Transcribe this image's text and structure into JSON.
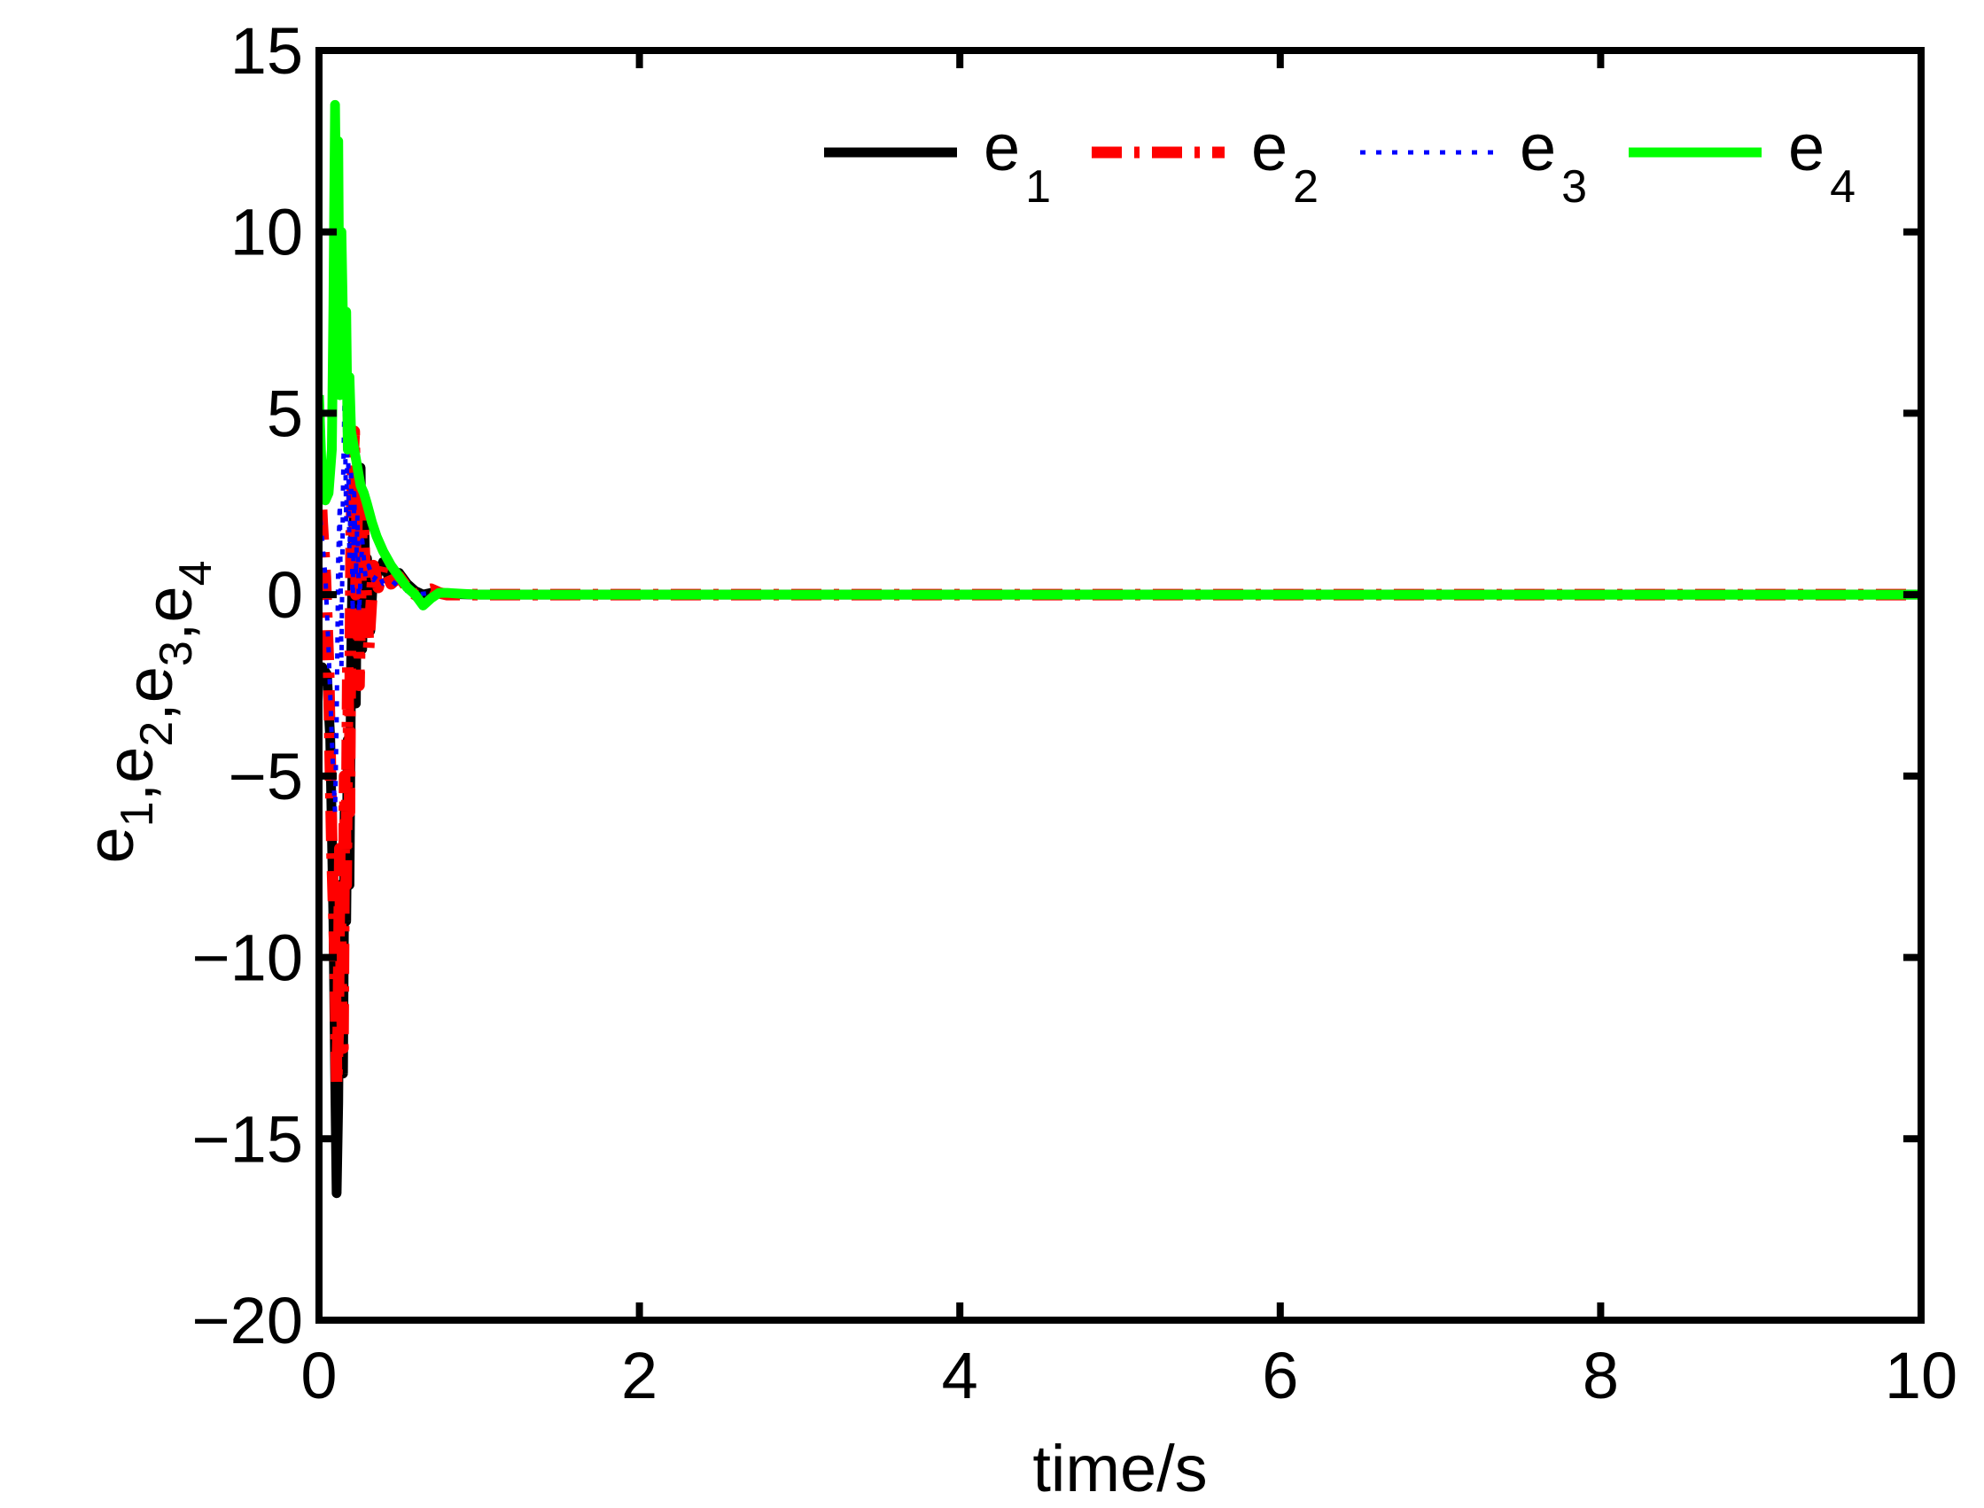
{
  "chart_data": {
    "type": "line",
    "title": "",
    "xlabel": "time/s",
    "ylabel": {
      "parts": [
        {
          "base": "e",
          "sub": "1"
        },
        {
          "base": ",e",
          "sub": "2"
        },
        {
          "base": ",e",
          "sub": "3"
        },
        {
          "base": ",e",
          "sub": "4"
        }
      ]
    },
    "xlim": [
      0,
      10
    ],
    "ylim": [
      -20,
      15
    ],
    "xticks": [
      0,
      2,
      4,
      6,
      8,
      10
    ],
    "yticks": [
      -20,
      -15,
      -10,
      -5,
      0,
      5,
      10,
      15
    ],
    "xtick_labels": [
      "0",
      "2",
      "4",
      "6",
      "8",
      "10"
    ],
    "ytick_labels": [
      "−20",
      "−15",
      "−10",
      "−5",
      "0",
      "5",
      "10",
      "15"
    ],
    "grid": false,
    "legend_position": "top-right",
    "series": [
      {
        "name": {
          "base": "e",
          "sub": "1"
        },
        "color": "#000000",
        "style": "solid",
        "x": [
          0,
          0.02,
          0.05,
          0.07,
          0.09,
          0.1,
          0.11,
          0.12,
          0.13,
          0.14,
          0.15,
          0.16,
          0.17,
          0.18,
          0.19,
          0.2,
          0.21,
          0.22,
          0.23,
          0.24,
          0.25,
          0.26,
          0.27,
          0.28,
          0.29,
          0.3,
          0.32,
          0.34,
          0.36,
          0.4,
          0.45,
          0.5,
          0.55,
          0.6,
          0.65,
          0.7,
          0.8,
          1.0,
          2.0,
          4.0,
          6.0,
          8.0,
          10.0
        ],
        "y": [
          -2.5,
          -2.0,
          -2.2,
          -4.0,
          -9.0,
          -13.0,
          -16.5,
          -14.0,
          -8.0,
          -11.0,
          -13.2,
          -6.0,
          -9.0,
          -4.0,
          -8.0,
          -2.0,
          1.0,
          2.5,
          -3.0,
          3.2,
          2.0,
          3.5,
          -1.5,
          2.5,
          0.5,
          1.0,
          -1.0,
          0.8,
          0.5,
          0.9,
          0.3,
          0.6,
          0.3,
          0.1,
          0.0,
          0.05,
          0.02,
          0,
          0,
          0,
          0,
          0,
          0
        ]
      },
      {
        "name": {
          "base": "e",
          "sub": "2"
        },
        "color": "#ff0000",
        "style": "dashdot",
        "x": [
          0,
          0.02,
          0.04,
          0.06,
          0.08,
          0.1,
          0.11,
          0.12,
          0.13,
          0.14,
          0.15,
          0.16,
          0.17,
          0.18,
          0.19,
          0.2,
          0.21,
          0.22,
          0.23,
          0.24,
          0.25,
          0.27,
          0.29,
          0.31,
          0.34,
          0.37,
          0.4,
          0.45,
          0.5,
          0.55,
          0.6,
          0.65,
          0.7,
          0.75,
          0.8,
          1.0,
          2.0,
          4.0,
          6.0,
          8.0,
          10.0
        ],
        "y": [
          4.0,
          2.0,
          0.5,
          -2.0,
          -7.0,
          -10.0,
          -13.5,
          -12.0,
          -7.0,
          -11.0,
          -12.5,
          -5.0,
          -8.0,
          -2.0,
          -6.0,
          1.5,
          3.5,
          4.5,
          0.0,
          3.0,
          -2.5,
          2.5,
          0.5,
          -1.5,
          0.8,
          0.2,
          0.8,
          0.3,
          0.5,
          0.2,
          0.0,
          0.1,
          0.15,
          0.05,
          0.0,
          0,
          0,
          0,
          0,
          0,
          0
        ]
      },
      {
        "name": {
          "base": "e",
          "sub": "3"
        },
        "color": "#0000ff",
        "style": "dotted",
        "x": [
          0,
          0.02,
          0.04,
          0.06,
          0.08,
          0.1,
          0.11,
          0.12,
          0.13,
          0.14,
          0.15,
          0.16,
          0.17,
          0.18,
          0.19,
          0.2,
          0.21,
          0.22,
          0.23,
          0.24,
          0.25,
          0.27,
          0.29,
          0.31,
          0.34,
          0.37,
          0.4,
          0.45,
          0.5,
          0.55,
          0.6,
          0.7,
          0.8,
          1.0,
          2.0,
          4.0,
          6.0,
          8.0,
          10.0
        ],
        "y": [
          2.5,
          1.5,
          0.5,
          -1.5,
          -4.0,
          -6.0,
          -3.5,
          1.0,
          2.5,
          -2.0,
          3.0,
          5.5,
          2.0,
          4.8,
          1.0,
          3.5,
          -0.5,
          2.8,
          0.5,
          2.2,
          -0.5,
          1.5,
          0.5,
          0.8,
          0.4,
          0.6,
          0.3,
          0.4,
          0.2,
          0.1,
          0.0,
          0.05,
          0.02,
          0,
          0,
          0,
          0,
          0,
          0
        ]
      },
      {
        "name": {
          "base": "e",
          "sub": "4"
        },
        "color": "#00ff00",
        "style": "solid",
        "x": [
          0,
          0.02,
          0.04,
          0.06,
          0.08,
          0.09,
          0.1,
          0.11,
          0.12,
          0.13,
          0.14,
          0.15,
          0.16,
          0.17,
          0.18,
          0.19,
          0.2,
          0.22,
          0.24,
          0.26,
          0.28,
          0.3,
          0.33,
          0.36,
          0.4,
          0.45,
          0.5,
          0.55,
          0.6,
          0.65,
          0.7,
          0.75,
          0.8,
          0.9,
          1.0,
          2.0,
          4.0,
          6.0,
          8.0,
          10.0
        ],
        "y": [
          5.5,
          3.0,
          2.6,
          2.8,
          4.0,
          8.0,
          13.5,
          9.0,
          12.5,
          5.5,
          10.0,
          7.5,
          6.0,
          7.8,
          4.0,
          6.0,
          4.5,
          4.0,
          3.5,
          3.0,
          2.8,
          2.5,
          2.0,
          1.6,
          1.2,
          0.8,
          0.5,
          0.2,
          0.0,
          -0.3,
          -0.1,
          0.05,
          0.05,
          0.02,
          0,
          0,
          0,
          0,
          0,
          0
        ]
      }
    ]
  }
}
